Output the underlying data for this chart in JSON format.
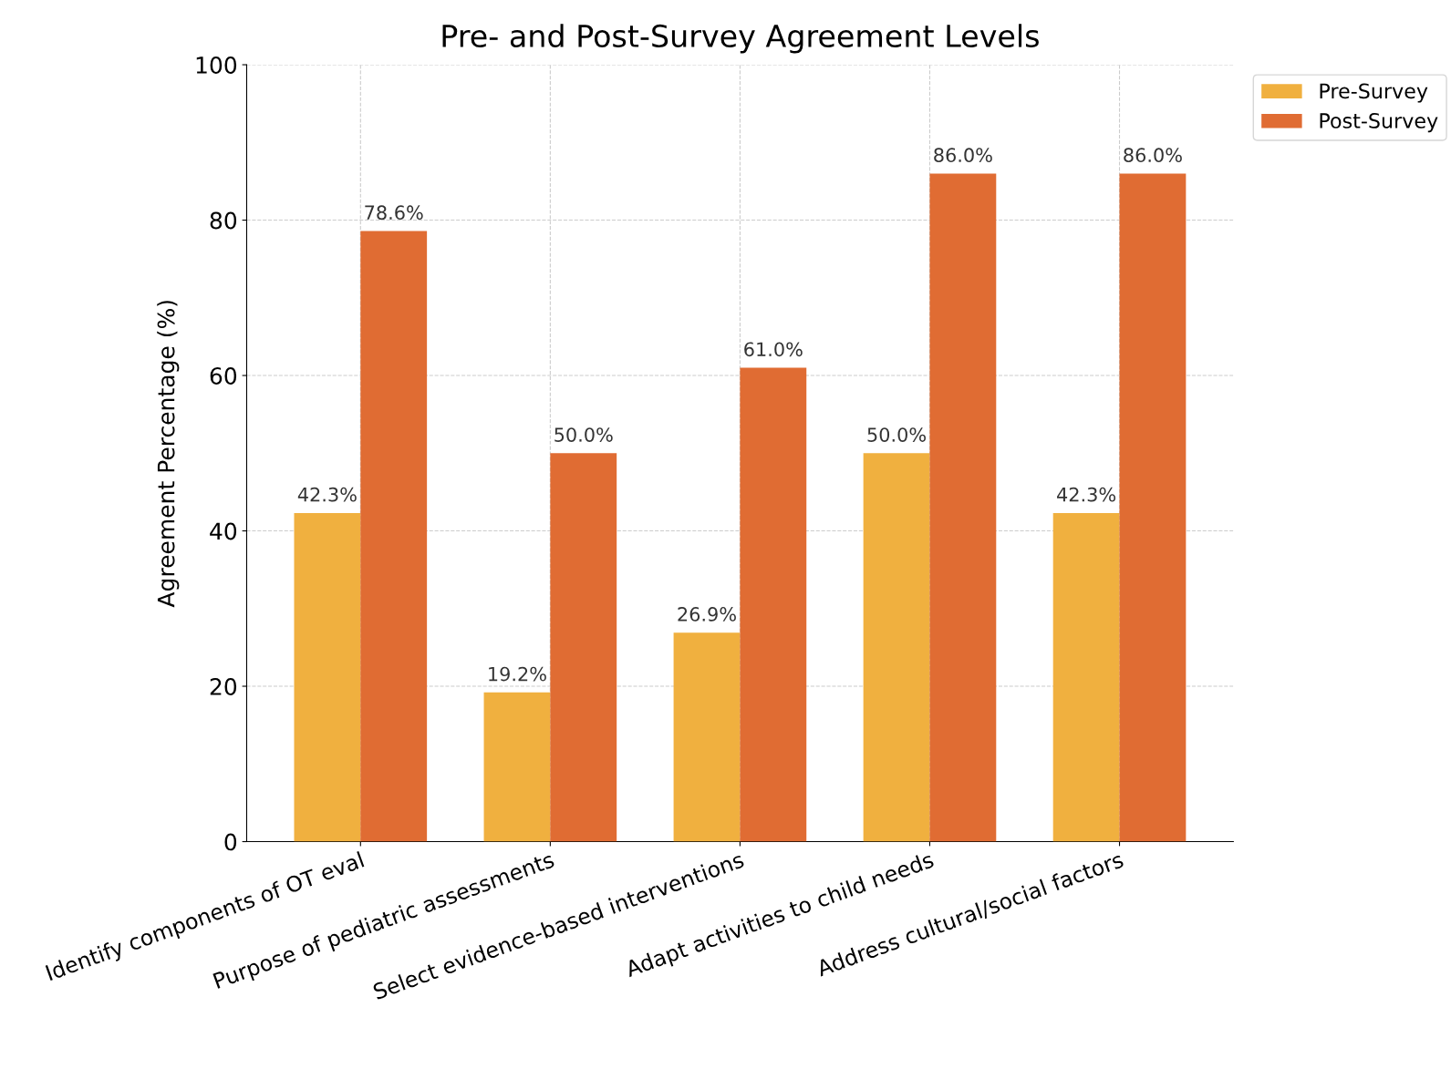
{
  "chart_data": {
    "type": "bar",
    "title": "Pre- and Post-Survey Agreement Levels",
    "ylabel": "Agreement Percentage (%)",
    "categories": [
      "Identify components of OT eval",
      "Purpose of pediatric assessments",
      "Select evidence-based interventions",
      "Adapt activities to child needs",
      "Address cultural/social factors"
    ],
    "series": [
      {
        "name": "Pre-Survey",
        "color": "#f0b03f",
        "values": [
          42.3,
          19.2,
          26.9,
          50.0,
          42.3
        ],
        "value_labels": [
          "42.3%",
          "19.2%",
          "26.9%",
          "50.0%",
          "42.3%"
        ]
      },
      {
        "name": "Post-Survey",
        "color": "#e06c33",
        "values": [
          78.6,
          50.0,
          61.0,
          86.0,
          86.0
        ],
        "value_labels": [
          "78.6%",
          "50.0%",
          "61.0%",
          "86.0%",
          "86.0%"
        ]
      }
    ],
    "ylim": [
      0,
      100
    ],
    "yticks": [
      0,
      20,
      40,
      60,
      80,
      100
    ],
    "grid": true,
    "legend": "top right"
  }
}
